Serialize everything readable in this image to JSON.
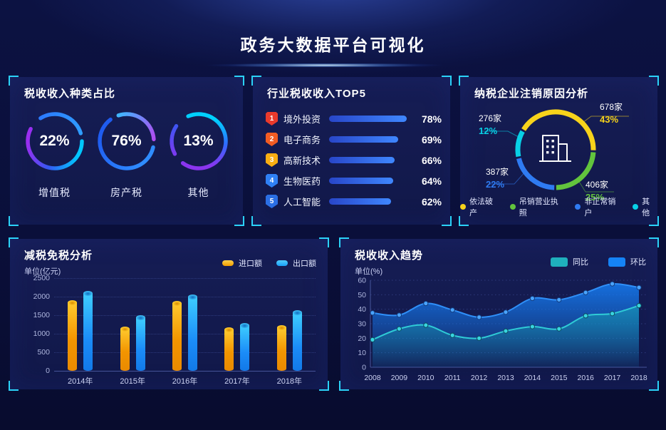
{
  "header": {
    "title": "政务大数据平台可视化"
  },
  "colors": {
    "accent_bracket": "#2bd2f8",
    "panel_background": "#131a4e",
    "page_background": "#0a0f3a",
    "top5_bar": "#3f87ff",
    "import_bar": "#f9b000",
    "export_bar": "#2bb7ff",
    "trend_tongbi": "#23c2d2",
    "trend_huanbi": "#1583f5"
  },
  "chart_data": [
    {
      "id": "tax_type_rings",
      "type": "pie",
      "style": "gauge-rings",
      "title": "税收收入种类占比",
      "items": [
        {
          "label": "增值税",
          "value": 22,
          "display": "22%"
        },
        {
          "label": "房产税",
          "value": 76,
          "display": "76%"
        },
        {
          "label": "其他",
          "value": 13,
          "display": "13%"
        }
      ]
    },
    {
      "id": "industry_top5",
      "type": "bar",
      "orientation": "horizontal",
      "title": "行业税收收入TOP5",
      "categories": [
        "境外投资",
        "电子商务",
        "高新技术",
        "生物医药",
        "人工智能"
      ],
      "values": [
        78,
        69,
        66,
        64,
        62
      ],
      "value_suffix": "%",
      "ranks": [
        "1",
        "2",
        "3",
        "4",
        "5"
      ],
      "rank_badge_colors": [
        "#e93a2c",
        "#f25c23",
        "#f9ae13",
        "#2f80f5",
        "#2b6fe4"
      ]
    },
    {
      "id": "cancel_reason",
      "type": "pie",
      "title": "纳税企业注销原因分析",
      "center_icon": "building-icon",
      "segments": [
        {
          "label": "依法破产",
          "count": "678家",
          "percent": 43,
          "display": "43%",
          "color": "#f7d31b"
        },
        {
          "label": "吊销营业执照",
          "count": "406家",
          "percent": 25,
          "display": "25%",
          "color": "#62c43d"
        },
        {
          "label": "非正常销户",
          "count": "387家",
          "percent": 22,
          "display": "22%",
          "color": "#2f7bf2"
        },
        {
          "label": "其他",
          "count": "276家",
          "percent": 12,
          "display": "12%",
          "color": "#08d0e6"
        }
      ],
      "legend": [
        "依法破产",
        "吊销营业执照",
        "非正常销户",
        "其他"
      ],
      "legend_position": "bottom"
    },
    {
      "id": "tax_reduction",
      "type": "bar",
      "title": "减税免税分析",
      "ylabel": "单位(亿元)",
      "categories": [
        "2014年",
        "2015年",
        "2016年",
        "2017年",
        "2018年"
      ],
      "series": [
        {
          "name": "进口额",
          "color": "#f9b000",
          "values": [
            1840,
            1130,
            1820,
            1100,
            1160
          ]
        },
        {
          "name": "出口额",
          "color": "#2bb7ff",
          "values": [
            2080,
            1430,
            2000,
            1230,
            1560
          ]
        }
      ],
      "ylim": [
        0,
        2500
      ],
      "yticks": [
        0,
        500,
        1000,
        1500,
        2000,
        2500
      ],
      "grid": "dotted",
      "legend_position": "top-right"
    },
    {
      "id": "tax_trend",
      "type": "area",
      "title": "税收收入趋势",
      "ylabel": "单位(%)",
      "x": [
        2008,
        2009,
        2010,
        2011,
        2012,
        2013,
        2014,
        2015,
        2016,
        2017,
        2018
      ],
      "series": [
        {
          "name": "同比",
          "color": "#23c2d2",
          "values": [
            19,
            26.5,
            29,
            22,
            20,
            25,
            28,
            26.5,
            35.5,
            37,
            42.5
          ]
        },
        {
          "name": "环比",
          "color": "#1583f5",
          "values": [
            37.5,
            36,
            44,
            39.5,
            34.5,
            38,
            47.5,
            46.5,
            51.5,
            57.5,
            55
          ]
        }
      ],
      "ylim": [
        0,
        60
      ],
      "yticks": [
        0,
        10,
        20,
        30,
        40,
        50,
        60
      ],
      "grid": "dotted",
      "legend_position": "top-right"
    }
  ]
}
